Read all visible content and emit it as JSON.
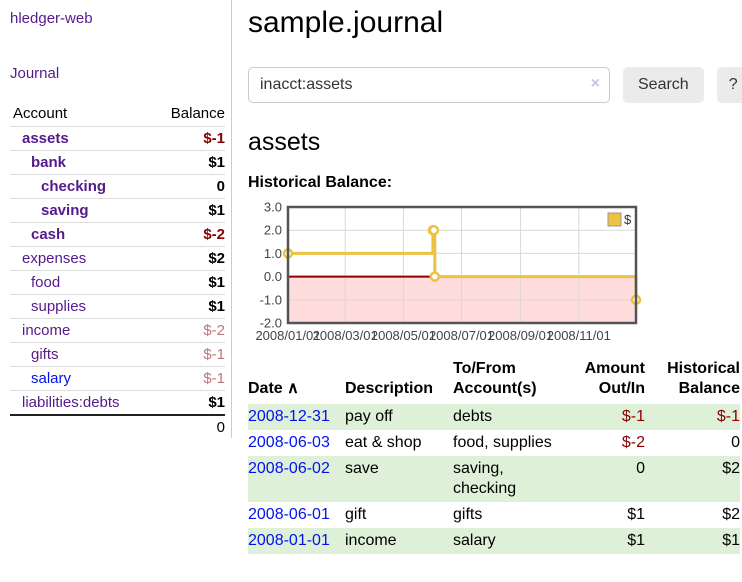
{
  "colors": {
    "link_purple": "#551a8b",
    "link_blue": "#0013ee",
    "negative_red": "#880000",
    "negative_dim": "#bd7777",
    "row_shade_green": "#dff0d8",
    "chart_series_gold": "#edc240",
    "chart_negative_fill": "#ffdddd",
    "chart_zero_line": "#880000",
    "chart_border": "#545454",
    "chart_grid": "#d8d8d8"
  },
  "sidebar": {
    "app_title": "hledger-web",
    "journal_link": "Journal",
    "table": {
      "headers": {
        "account": "Account",
        "balance": "Balance"
      },
      "rows": [
        {
          "label": "assets",
          "indent": 1,
          "bold": true,
          "link_color": "purple",
          "balance": "$-1",
          "balance_color": "negative"
        },
        {
          "label": "bank",
          "indent": 2,
          "bold": true,
          "link_color": "purple",
          "balance": "$1",
          "balance_color": ""
        },
        {
          "label": "checking",
          "indent": 3,
          "bold": true,
          "link_color": "purple",
          "balance": "0",
          "balance_color": ""
        },
        {
          "label": "saving",
          "indent": 3,
          "bold": true,
          "link_color": "purple",
          "balance": "$1",
          "balance_color": ""
        },
        {
          "label": "cash",
          "indent": 2,
          "bold": true,
          "link_color": "purple",
          "balance": "$-2",
          "balance_color": "negative"
        },
        {
          "label": "expenses",
          "indent": 1,
          "bold": false,
          "link_color": "purple",
          "balance": "$2",
          "balance_color": ""
        },
        {
          "label": "food",
          "indent": 2,
          "bold": false,
          "link_color": "purple",
          "balance": "$1",
          "balance_color": ""
        },
        {
          "label": "supplies",
          "indent": 2,
          "bold": false,
          "link_color": "purple",
          "balance": "$1",
          "balance_color": ""
        },
        {
          "label": "income",
          "indent": 1,
          "bold": false,
          "link_color": "purple",
          "balance": "$-2",
          "balance_color": "negative-dim"
        },
        {
          "label": "gifts",
          "indent": 2,
          "bold": false,
          "link_color": "purple",
          "balance": "$-1",
          "balance_color": "negative-dim"
        },
        {
          "label": "salary",
          "indent": 2,
          "bold": false,
          "link_color": "blue",
          "balance": "$-1",
          "balance_color": "negative-dim"
        },
        {
          "label": "liabilities:debts",
          "indent": 1,
          "bold": false,
          "link_color": "purple",
          "balance": "$1",
          "balance_color": ""
        }
      ],
      "total": "0"
    }
  },
  "main": {
    "title": "sample.journal",
    "search": {
      "value": "inacct:assets",
      "clear_icon": "×",
      "search_button": "Search",
      "help_button": "?"
    },
    "account_heading": "assets",
    "chart_heading": "Historical Balance:"
  },
  "chart_data": {
    "type": "line",
    "step": true,
    "title": "Historical Balance",
    "xlim": [
      "2008-01-01",
      "2008-12-31"
    ],
    "ylim": [
      -2,
      3
    ],
    "y_ticks": [
      3.0,
      2.0,
      1.0,
      0.0,
      -1.0,
      -2.0
    ],
    "x_ticks": [
      "2008/01/01",
      "2008/03/01",
      "2008/05/01",
      "2008/07/01",
      "2008/09/01",
      "2008/11/01"
    ],
    "grid": true,
    "legend": {
      "label": "$",
      "position": "top-right"
    },
    "series": [
      {
        "name": "$",
        "color": "#edc240",
        "points": [
          [
            "2008-01-01",
            1
          ],
          [
            "2008-06-01",
            2
          ],
          [
            "2008-06-02",
            2
          ],
          [
            "2008-06-03",
            0
          ],
          [
            "2008-12-31",
            -1
          ]
        ]
      }
    ]
  },
  "register": {
    "headers": [
      {
        "label": "Date",
        "sort_indicator": "∧",
        "align": "left"
      },
      {
        "label": "Description",
        "align": "left"
      },
      {
        "label": "To/From Account(s)",
        "align": "left"
      },
      {
        "label": "Amount Out/In",
        "align": "right"
      },
      {
        "label": "Historical Balance",
        "align": "right"
      }
    ],
    "rows": [
      {
        "date": "2008-12-31",
        "description": "pay off",
        "accounts": "debts",
        "amount": "$-1",
        "amount_negative": true,
        "balance": "$-1",
        "balance_negative": true,
        "shaded": true
      },
      {
        "date": "2008-06-03",
        "description": "eat & shop",
        "accounts": "food, supplies",
        "amount": "$-2",
        "amount_negative": true,
        "balance": "0",
        "balance_negative": false,
        "shaded": false
      },
      {
        "date": "2008-06-02",
        "description": "save",
        "accounts": "saving, checking",
        "amount": "0",
        "amount_negative": false,
        "balance": "$2",
        "balance_negative": false,
        "shaded": true
      },
      {
        "date": "2008-06-01",
        "description": "gift",
        "accounts": "gifts",
        "amount": "$1",
        "amount_negative": false,
        "balance": "$2",
        "balance_negative": false,
        "shaded": false
      },
      {
        "date": "2008-01-01",
        "description": "income",
        "accounts": "salary",
        "amount": "$1",
        "amount_negative": false,
        "balance": "$1",
        "balance_negative": false,
        "shaded": true
      }
    ]
  }
}
